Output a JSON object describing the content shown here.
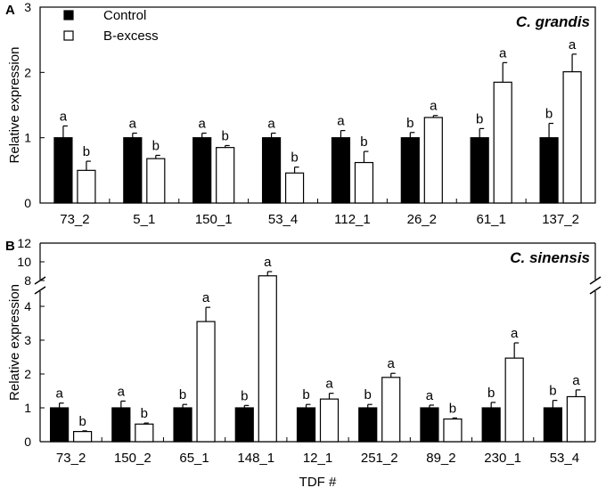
{
  "chart_data": [
    {
      "type": "bar",
      "panel": "A",
      "species": "C. grandis",
      "ylabel": "Relative expression",
      "ylim": [
        0,
        3
      ],
      "yticks": [
        "0",
        "1",
        "2",
        "3"
      ],
      "categories": [
        "73_2",
        "5_1",
        "150_1",
        "53_4",
        "112_1",
        "26_2",
        "61_1",
        "137_2"
      ],
      "series": [
        {
          "name": "Control",
          "values": [
            1.0,
            1.0,
            1.0,
            1.0,
            1.0,
            1.0,
            1.0,
            1.0
          ],
          "errors": [
            0.18,
            0.07,
            0.07,
            0.07,
            0.11,
            0.08,
            0.14,
            0.22
          ],
          "labels": [
            "a",
            "a",
            "a",
            "a",
            "a",
            "b",
            "b",
            "b"
          ]
        },
        {
          "name": "B-excess",
          "values": [
            0.5,
            0.68,
            0.85,
            0.46,
            0.62,
            1.31,
            1.85,
            2.01
          ],
          "errors": [
            0.14,
            0.05,
            0.03,
            0.09,
            0.17,
            0.03,
            0.3,
            0.27
          ],
          "labels": [
            "b",
            "b",
            "b",
            "b",
            "b",
            "a",
            "a",
            "a"
          ]
        }
      ],
      "legend": [
        {
          "label": "Control"
        },
        {
          "label": "B-excess"
        }
      ]
    },
    {
      "type": "bar",
      "panel": "B",
      "species": "C. sinensis",
      "ylabel": "Relative expression",
      "xlabel": "TDF #",
      "ylim": [
        0,
        12
      ],
      "axis_break": [
        4.4,
        7.5
      ],
      "yticks": [
        "0",
        "1",
        "2",
        "3",
        "4",
        "8",
        "10",
        "12"
      ],
      "categories": [
        "73_2",
        "150_2",
        "65_1",
        "148_1",
        "12_1",
        "251_2",
        "89_2",
        "230_1",
        "53_4"
      ],
      "series": [
        {
          "name": "Control",
          "values": [
            1.0,
            1.0,
            1.0,
            1.0,
            1.0,
            1.0,
            1.0,
            1.0,
            1.0
          ],
          "errors": [
            0.14,
            0.2,
            0.1,
            0.07,
            0.1,
            0.1,
            0.08,
            0.16,
            0.22
          ],
          "labels": [
            "a",
            "a",
            "b",
            "b",
            "b",
            "b",
            "a",
            "b",
            "b"
          ]
        },
        {
          "name": "B-excess",
          "values": [
            0.3,
            0.52,
            3.55,
            8.5,
            1.26,
            1.9,
            0.67,
            2.47,
            1.33
          ],
          "errors": [
            0.02,
            0.03,
            0.42,
            0.45,
            0.17,
            0.12,
            0.03,
            0.45,
            0.2
          ],
          "labels": [
            "b",
            "b",
            "a",
            "a",
            "a",
            "a",
            "b",
            "a",
            "a"
          ]
        }
      ]
    }
  ]
}
